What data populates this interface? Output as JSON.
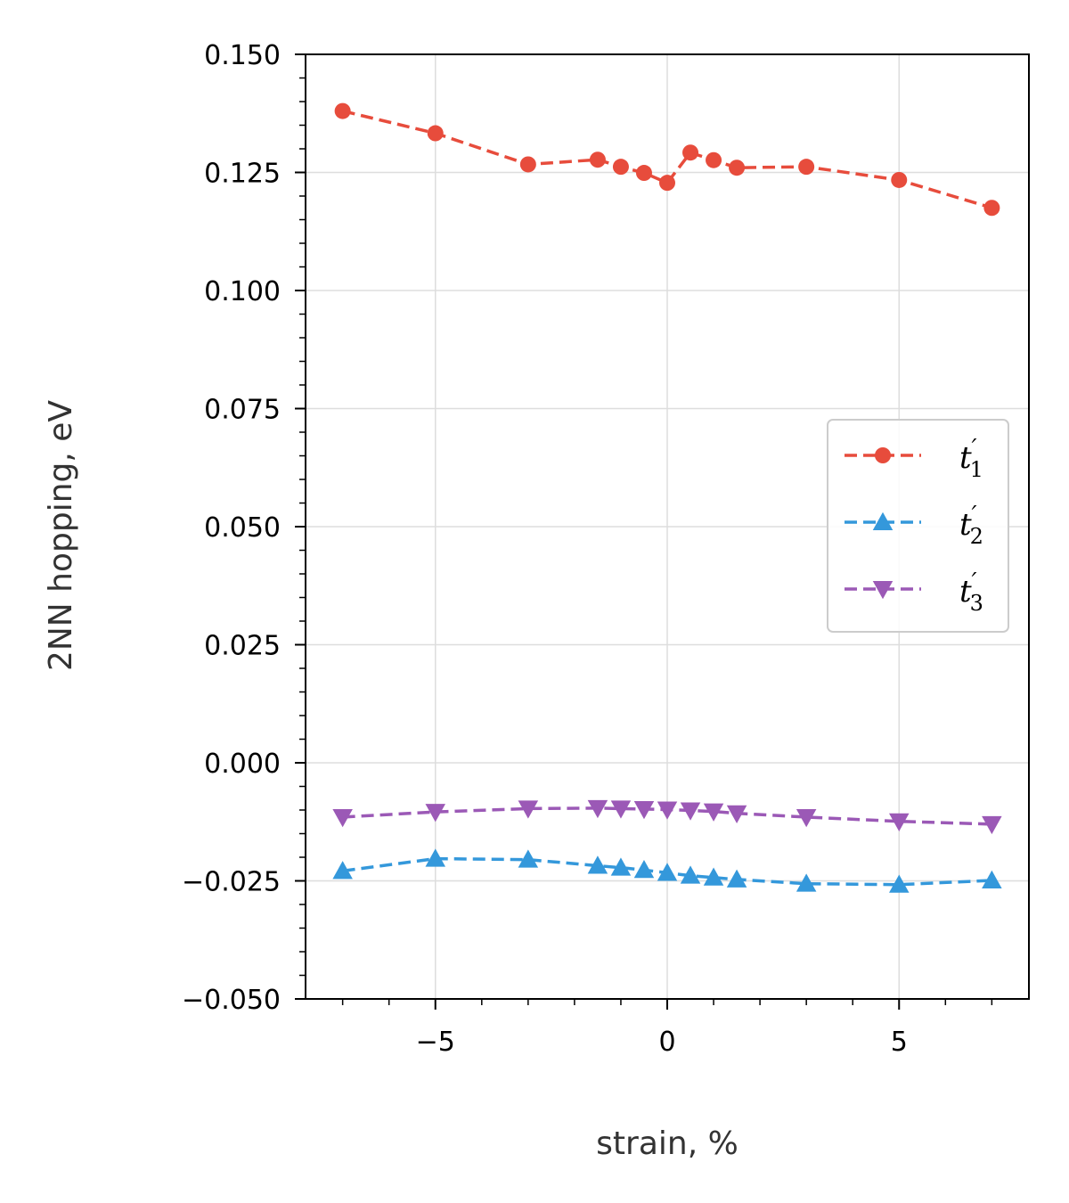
{
  "chart_data": {
    "type": "line",
    "xlabel": "strain, %",
    "ylabel": "2NN hopping, eV",
    "xlim": [
      -7.8,
      7.8
    ],
    "ylim": [
      -0.05,
      0.15
    ],
    "xticks": [
      -5,
      0,
      5
    ],
    "xtick_labels": [
      "−5",
      "0",
      "5"
    ],
    "yticks": [
      -0.05,
      -0.025,
      0.0,
      0.025,
      0.05,
      0.075,
      0.1,
      0.125,
      0.15
    ],
    "ytick_labels": [
      "−0.050",
      "−0.025",
      "0.000",
      "0.025",
      "0.050",
      "0.075",
      "0.100",
      "0.125",
      "0.150"
    ],
    "grid": true,
    "legend_position": "center-right",
    "x": [
      -7,
      -5,
      -3,
      -1.5,
      -1,
      -0.5,
      0,
      0.5,
      1,
      1.5,
      3,
      5,
      7
    ],
    "series": [
      {
        "name": "t′1",
        "label_base": "t",
        "label_sub": "1",
        "color": "#e74c3c",
        "marker": "circle",
        "linestyle": "dashed",
        "values": [
          0.138,
          0.1333,
          0.1267,
          0.1277,
          0.1262,
          0.1249,
          0.1228,
          0.1292,
          0.1276,
          0.126,
          0.1262,
          0.1234,
          0.1175
        ]
      },
      {
        "name": "t′2",
        "label_base": "t",
        "label_sub": "2",
        "color": "#3498db",
        "marker": "triangle-up",
        "linestyle": "dashed",
        "values": [
          -0.0229,
          -0.0203,
          -0.0205,
          -0.0218,
          -0.0222,
          -0.0227,
          -0.0233,
          -0.0239,
          -0.0243,
          -0.0247,
          -0.0256,
          -0.0258,
          -0.0249
        ]
      },
      {
        "name": "t′3",
        "label_base": "t",
        "label_sub": "3",
        "color": "#9b59b6",
        "marker": "triangle-down",
        "linestyle": "dashed",
        "values": [
          -0.0115,
          -0.0104,
          -0.0097,
          -0.0096,
          -0.0097,
          -0.0098,
          -0.0099,
          -0.0101,
          -0.0103,
          -0.0107,
          -0.0115,
          -0.0124,
          -0.013
        ]
      }
    ]
  }
}
